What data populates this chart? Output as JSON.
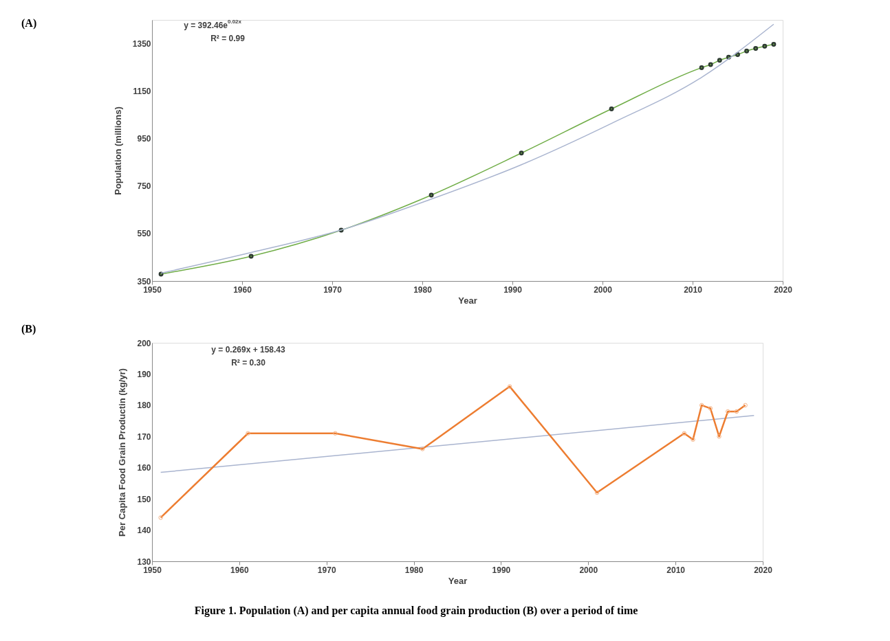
{
  "chart_data": [
    {
      "type": "line",
      "xlabel": "Year",
      "ylabel": "Population (millions)",
      "xlim": [
        1950,
        2020
      ],
      "xticks": [
        1950,
        1960,
        1970,
        1980,
        1990,
        2000,
        2010,
        2020
      ],
      "ylim": [
        350,
        1450
      ],
      "yticks": [
        350,
        550,
        750,
        950,
        1150,
        1350
      ],
      "grid": false,
      "annotations": [
        "(A)",
        "y = 392.46e$^{0.02x}$",
        "R² = 0.99"
      ],
      "series": [
        {
          "marker": "circle",
          "color": "#70ad47",
          "x": [
            1951,
            1961,
            1971,
            1981,
            1991,
            2001,
            2011,
            2012,
            2013,
            2014,
            2015,
            2016,
            2017,
            2018,
            2019
          ],
          "values": [
            379,
            454,
            564,
            712,
            889,
            1075,
            1249,
            1262,
            1280,
            1293,
            1304,
            1319,
            1330,
            1339,
            1347
          ]
        },
        {
          "marker": "none",
          "color": "#a9b4cf",
          "x": [
            1951,
            1961,
            1971,
            1981,
            1991,
            2001,
            2011,
            2019
          ],
          "values": [
            383,
            470,
            565,
            695,
            840,
            1014,
            1208,
            1432
          ]
        }
      ]
    },
    {
      "type": "line",
      "xlabel": "Year",
      "ylabel": "Per Capita Food Grain Productin (kg/yr)",
      "xlim": [
        1950,
        2020
      ],
      "xticks": [
        1950,
        1960,
        1970,
        1980,
        1990,
        2000,
        2010,
        2020
      ],
      "ylim": [
        130,
        200
      ],
      "yticks": [
        130,
        140,
        150,
        160,
        170,
        180,
        190,
        200
      ],
      "grid": false,
      "annotations": [
        "(B)",
        "y = 0.269x + 158.43",
        "R² = 0.30",
        "Figure 1.  Population (A) and per capita annual food grain production (B) over a period of time"
      ],
      "series": [
        {
          "marker": "none",
          "color": "#a9b4cf",
          "x": [
            1951,
            2019
          ],
          "values": [
            158.5,
            176.7
          ]
        },
        {
          "marker": "circle",
          "color": "#ed7d31",
          "x": [
            1951,
            1961,
            1971,
            1981,
            1991,
            2001,
            2011,
            2012,
            2013,
            2014,
            2015,
            2016,
            2017,
            2018
          ],
          "values": [
            144,
            171,
            171,
            166,
            186,
            152,
            171,
            169,
            180,
            179,
            170,
            178,
            178,
            180
          ]
        }
      ]
    }
  ]
}
